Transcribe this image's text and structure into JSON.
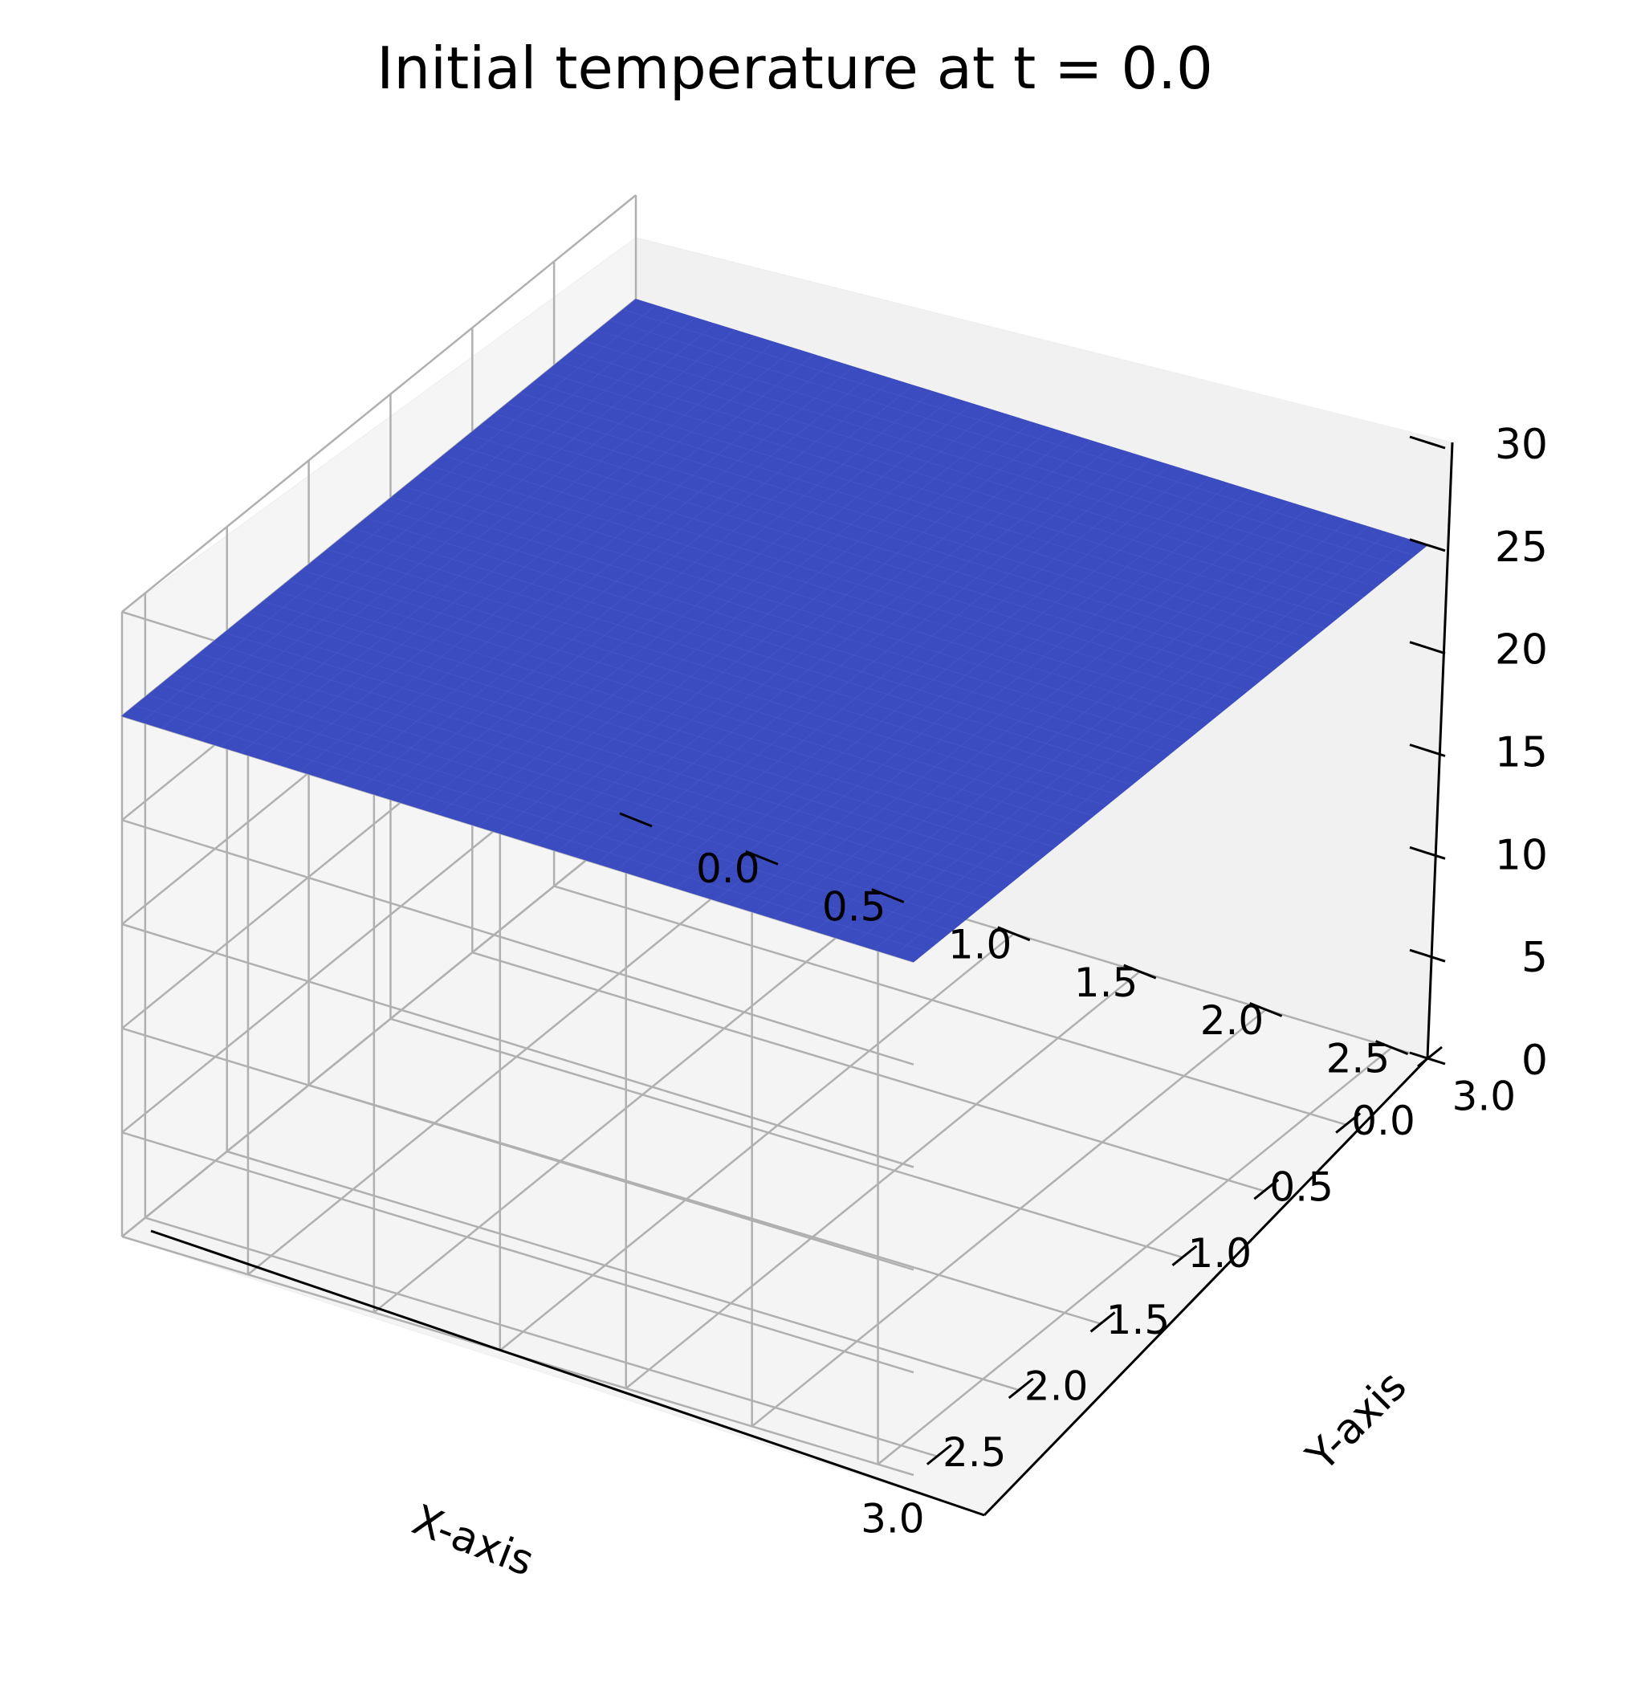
{
  "chart_data": {
    "type": "surface3d",
    "title": "Initial temperature at t = 0.0",
    "xlabel": "X-axis",
    "ylabel": "Y-axis",
    "zlabel": "",
    "x_ticks": [
      "0.0",
      "0.5",
      "1.0",
      "1.5",
      "2.0",
      "2.5",
      "3.0"
    ],
    "y_ticks": [
      "0.0",
      "0.5",
      "1.0",
      "1.5",
      "2.0",
      "2.5",
      "3.0"
    ],
    "z_ticks": [
      "0",
      "5",
      "10",
      "15",
      "20",
      "25",
      "30"
    ],
    "xlim": [
      0,
      3.14159
    ],
    "ylim": [
      0,
      3.14159
    ],
    "zlim": [
      0,
      30
    ],
    "grid": true,
    "surface": {
      "description": "constant temperature plane",
      "z_value": 25,
      "x_range": [
        0,
        3.14159
      ],
      "y_range": [
        0,
        3.14159
      ],
      "color": "#3b4cc0"
    }
  }
}
